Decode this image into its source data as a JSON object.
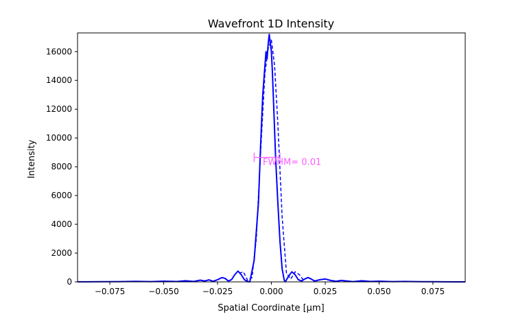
{
  "chart_data": {
    "type": "line",
    "title": "Wavefront 1D Intensity",
    "xlabel": "Spatial Coordinate [μm]",
    "ylabel": "Intensity",
    "xlim": [
      -0.09,
      0.09
    ],
    "ylim": [
      0,
      17300
    ],
    "xticks": [
      -0.075,
      -0.05,
      -0.025,
      0.0,
      0.025,
      0.05,
      0.075
    ],
    "xtick_labels": [
      "−0.075",
      "−0.050",
      "−0.025",
      "0.000",
      "0.025",
      "0.050",
      "0.075"
    ],
    "yticks": [
      0,
      2000,
      4000,
      6000,
      8000,
      10000,
      12000,
      14000,
      16000
    ],
    "ytick_labels": [
      "0",
      "2000",
      "4000",
      "6000",
      "8000",
      "10000",
      "12000",
      "14000",
      "16000"
    ],
    "grid": false,
    "series": [
      {
        "color": "#0000ff",
        "style": "solid",
        "x": [
          -0.09,
          -0.08,
          -0.07,
          -0.063,
          -0.056,
          -0.05,
          -0.044,
          -0.04,
          -0.036,
          -0.033,
          -0.031,
          -0.029,
          -0.027,
          -0.025,
          -0.023,
          -0.0215,
          -0.02,
          -0.0185,
          -0.017,
          -0.0155,
          -0.014,
          -0.0125,
          -0.011,
          -0.01,
          -0.008,
          -0.006,
          -0.005,
          -0.004,
          -0.003,
          -0.0025,
          -0.002,
          -0.0015,
          -0.001,
          -0.0005,
          0.0,
          0.0005,
          0.001,
          0.0015,
          0.002,
          0.003,
          0.004,
          0.005,
          0.006,
          0.0065,
          0.008,
          0.0095,
          0.011,
          0.0125,
          0.014,
          0.0155,
          0.017,
          0.0185,
          0.02,
          0.0225,
          0.025,
          0.0275,
          0.03,
          0.0325,
          0.035,
          0.038,
          0.042,
          0.046,
          0.05,
          0.056,
          0.062,
          0.07,
          0.08,
          0.09
        ],
        "y": [
          5,
          10,
          20,
          35,
          20,
          50,
          25,
          80,
          30,
          120,
          60,
          140,
          40,
          150,
          300,
          240,
          60,
          150,
          500,
          750,
          500,
          150,
          20,
          5,
          1500,
          5500,
          9500,
          13000,
          15000,
          16000,
          15500,
          16500,
          17200,
          16600,
          16000,
          14500,
          12500,
          10500,
          8500,
          5500,
          2800,
          900,
          100,
          10,
          400,
          700,
          500,
          150,
          60,
          200,
          300,
          200,
          60,
          150,
          200,
          100,
          40,
          100,
          60,
          20,
          80,
          30,
          50,
          20,
          30,
          15,
          8,
          3
        ]
      },
      {
        "color": "#0000ff",
        "style": "dashed",
        "x": [
          -0.015,
          -0.013,
          -0.011,
          -0.009,
          -0.007,
          -0.005,
          -0.003,
          -0.0015,
          0.0,
          0.0015,
          0.003,
          0.005,
          0.007,
          0.009,
          0.011,
          0.013,
          0.015
        ],
        "y": [
          600,
          700,
          100,
          300,
          3000,
          9000,
          14500,
          16200,
          16800,
          15000,
          11000,
          4500,
          600,
          200,
          700,
          500,
          100
        ]
      }
    ],
    "annotations": [
      {
        "text": "FWHM= 0.01",
        "color": "#ff5cff",
        "x": -0.004,
        "y": 8300
      }
    ],
    "fwhm_marker": {
      "color": "#ff5cff",
      "x": [
        -0.008,
        0.004
      ],
      "y": [
        8650,
        8650
      ],
      "ends": [
        [
          -0.008,
          8650
        ],
        [
          0.004,
          8650
        ]
      ]
    }
  }
}
